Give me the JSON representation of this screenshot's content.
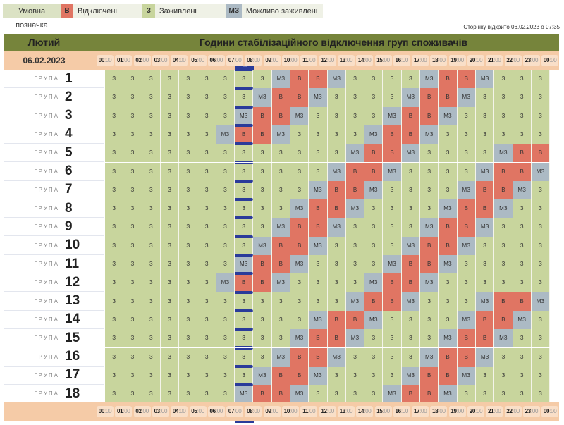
{
  "legend": {
    "title": "Умовна позначка",
    "items": [
      {
        "code": "В",
        "label": "Відключені",
        "color": "#e07563"
      },
      {
        "code": "З",
        "label": "Заживлені",
        "color": "#c8d59d"
      },
      {
        "code": "МЗ",
        "label": "Можливо заживлені",
        "color": "#acbac4"
      }
    ]
  },
  "opened_text": "Сторінку відкрито 06.02.2023 о 07:35",
  "header": {
    "month": "Лютий",
    "title": "Години стабілізаційного відключення груп споживачів"
  },
  "date": "06.02.2023",
  "current_hour_index": 7,
  "current_marker": "•••",
  "hours": [
    "00",
    "01",
    "02",
    "03",
    "04",
    "05",
    "06",
    "07",
    "08",
    "09",
    "10",
    "11",
    "12",
    "13",
    "14",
    "15",
    "16",
    "17",
    "18",
    "19",
    "20",
    "21",
    "22",
    "23",
    "00"
  ],
  "minutes_suffix": ":00",
  "group_word": "ГРУПА",
  "code_map": {
    "Z": "З",
    "V": "В",
    "M": "МЗ"
  },
  "groups": [
    {
      "n": "1",
      "s": "ZZZZZZZZZMVVMZZZZMVVMZZZ"
    },
    {
      "n": "2",
      "s": "ZZZZZZZZMVVMZZZZMVVMZZZZ"
    },
    {
      "n": "3",
      "s": "ZZZZZZZMVVMZZZZMVVMZZZZZ"
    },
    {
      "n": "4",
      "s": "ZZZZZZMVVMZZZZMVVMZZZZZZ"
    },
    {
      "n": "5",
      "s": "ZZZZZZZZZZZZZMVVMZZZZMVV"
    },
    {
      "n": "6",
      "s": "ZZZZZZZZZZZZMVVMZZZZMVVM"
    },
    {
      "n": "7",
      "s": "ZZZZZZZZZZZMVVMZZZZMVVMZ"
    },
    {
      "n": "8",
      "s": "ZZZZZZZZZZMVVMZZZZMVVMZZ"
    },
    {
      "n": "9",
      "s": "ZZZZZZZZZMVVMZZZZMVVMZZZ"
    },
    {
      "n": "10",
      "s": "ZZZZZZZZMVVMZZZZMVVMZZZZ"
    },
    {
      "n": "11",
      "s": "ZZZZZZZMVVMZZZZMVVMZZZZZ"
    },
    {
      "n": "12",
      "s": "ZZZZZZMVVMZZZZMVVMZZZZZZ"
    },
    {
      "n": "13",
      "s": "ZZZZZZZZZZZZZMVVMZZZMVVM"
    },
    {
      "n": "14",
      "s": "ZZZZZZZZZZZMVVMZZZZMVVMZ"
    },
    {
      "n": "15",
      "s": "ZZZZZZZZZZMVVMZZZZMVVMZZ"
    },
    {
      "n": "16",
      "s": "ZZZZZZZZZMVVMZZZZMVVMZZZ"
    },
    {
      "n": "17",
      "s": "ZZZZZZZZMVVMZZZZMVVMZZZZ"
    },
    {
      "n": "18",
      "s": "ZZZZZZZMVVMZZZZMVVMZZZZZ"
    }
  ]
}
